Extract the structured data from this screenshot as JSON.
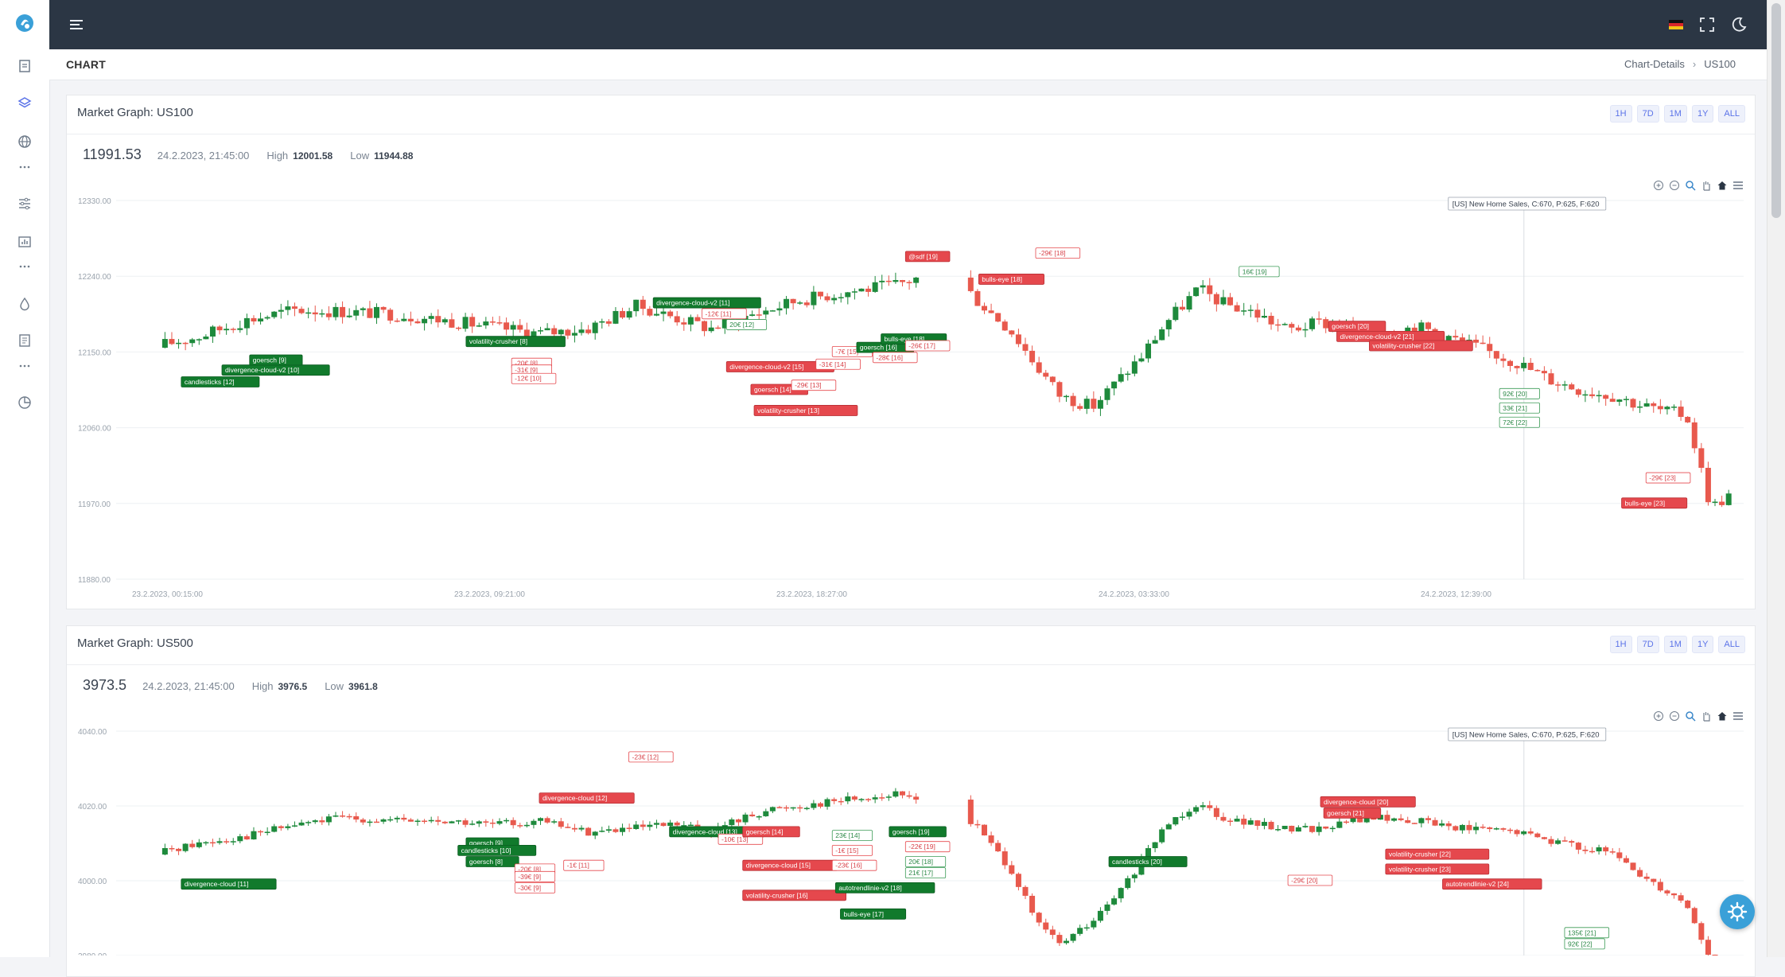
{
  "page": {
    "title": "CHART",
    "breadcrumb": [
      "Chart-Details",
      "US100"
    ]
  },
  "colors": {
    "up": "#1e8a3c",
    "down": "#e8594d",
    "accent": "#5b73e8",
    "topbar": "#2b3644"
  },
  "ranges": [
    "1H",
    "7D",
    "1M",
    "1Y",
    "ALL"
  ],
  "charts": [
    {
      "title": "Market Graph: US100",
      "price": "11991.53",
      "date": "24.2.2023, 21:45:00",
      "high_label": "High",
      "high": "12001.58",
      "low_label": "Low",
      "low": "11944.88",
      "event": "[US] New Home Sales, C:670, P:625, F:620"
    },
    {
      "title": "Market Graph: US500",
      "price": "3973.5",
      "date": "24.2.2023, 21:45:00",
      "high_label": "High",
      "high": "3976.5",
      "low_label": "Low",
      "low": "3961.8",
      "event": "[US] New Home Sales, C:670, P:625, F:620"
    }
  ],
  "chart_data": [
    {
      "type": "line",
      "chart_style": "candlestick",
      "ylim": [
        11880,
        12330
      ],
      "yticks": [
        "12330.00",
        "12240.00",
        "12150.00",
        "12060.00",
        "11970.00",
        "11880.00"
      ],
      "xticks": [
        "23.2.2023, 00:15:00",
        "23.2.2023, 09:21:00",
        "23.2.2023, 18:27:00",
        "24.2.2023, 03:33:00",
        "24.2.2023, 12:39:00"
      ],
      "x": [
        0.02,
        0.05,
        0.08,
        0.11,
        0.14,
        0.17,
        0.2,
        0.23,
        0.26,
        0.29,
        0.32,
        0.345,
        0.365,
        0.38,
        0.4,
        0.42,
        0.45,
        0.48,
        0.51,
        0.53,
        0.55,
        0.565,
        0.58,
        0.6,
        0.615,
        0.63,
        0.645,
        0.665,
        0.68,
        0.7,
        0.72,
        0.74,
        0.77,
        0.8,
        0.83,
        0.86,
        0.88,
        0.9,
        0.92,
        0.935,
        0.95,
        0.965,
        0.98,
        0.995
      ],
      "y": [
        12155,
        12168,
        12188,
        12200,
        12198,
        12195,
        12188,
        12180,
        12172,
        12178,
        12205,
        12190,
        12178,
        12188,
        12200,
        12212,
        12222,
        12230,
        12250,
        12210,
        12175,
        12135,
        12098,
        12085,
        12115,
        12145,
        12185,
        12225,
        12208,
        12196,
        12176,
        12185,
        12172,
        12180,
        12160,
        12138,
        12118,
        12105,
        12098,
        12088,
        12080,
        12075,
        11965,
        11985
      ],
      "labels": [
        {
          "text": "candlesticks [12]",
          "x": 0.04,
          "y": 12114,
          "kind": "up"
        },
        {
          "text": "divergence-cloud-v2 [10]",
          "x": 0.065,
          "y": 12128,
          "kind": "up"
        },
        {
          "text": "goersch [9]",
          "x": 0.082,
          "y": 12140,
          "kind": "up"
        },
        {
          "text": "volatility-crusher [8]",
          "x": 0.215,
          "y": 12162,
          "kind": "up"
        },
        {
          "text": "-20€ [8]",
          "x": 0.243,
          "y": 12136,
          "kind": "down-outline"
        },
        {
          "text": "-31€ [9]",
          "x": 0.243,
          "y": 12128,
          "kind": "down-outline"
        },
        {
          "text": "-12€ [10]",
          "x": 0.243,
          "y": 12118,
          "kind": "down-outline"
        },
        {
          "text": "divergence-cloud-v2 [11]",
          "x": 0.33,
          "y": 12208,
          "kind": "up"
        },
        {
          "text": "-12€ [11]",
          "x": 0.36,
          "y": 12195,
          "kind": "down-outline"
        },
        {
          "text": "20€ [12]",
          "x": 0.375,
          "y": 12182,
          "kind": "up-outline"
        },
        {
          "text": "divergence-cloud-v2 [15]",
          "x": 0.375,
          "y": 12132,
          "kind": "down"
        },
        {
          "text": "goersch [14]",
          "x": 0.39,
          "y": 12105,
          "kind": "down"
        },
        {
          "text": "-29€ [13]",
          "x": 0.415,
          "y": 12110,
          "kind": "down-outline"
        },
        {
          "text": "volatility-crusher [13]",
          "x": 0.392,
          "y": 12080,
          "kind": "down"
        },
        {
          "text": "-31€ [14]",
          "x": 0.43,
          "y": 12135,
          "kind": "down-outline"
        },
        {
          "text": "-7€ [15]",
          "x": 0.44,
          "y": 12150,
          "kind": "down-outline"
        },
        {
          "text": "goersch [16]",
          "x": 0.455,
          "y": 12155,
          "kind": "up"
        },
        {
          "text": "bulls-eye [18]",
          "x": 0.47,
          "y": 12165,
          "kind": "up"
        },
        {
          "text": "-28€ [16]",
          "x": 0.465,
          "y": 12143,
          "kind": "down-outline"
        },
        {
          "text": "-26€ [17]",
          "x": 0.485,
          "y": 12157,
          "kind": "down-outline"
        },
        {
          "text": "@sdf [19]",
          "x": 0.485,
          "y": 12263,
          "kind": "down"
        },
        {
          "text": "bulls-eye [18]",
          "x": 0.53,
          "y": 12236,
          "kind": "down"
        },
        {
          "text": "-29€ [18]",
          "x": 0.565,
          "y": 12267,
          "kind": "down-outline"
        },
        {
          "text": "16€ [19]",
          "x": 0.69,
          "y": 12245,
          "kind": "up-outline"
        },
        {
          "text": "goersch [20]",
          "x": 0.745,
          "y": 12180,
          "kind": "down"
        },
        {
          "text": "divergence-cloud-v2 [21]",
          "x": 0.75,
          "y": 12168,
          "kind": "down"
        },
        {
          "text": "volatility-crusher [22]",
          "x": 0.77,
          "y": 12157,
          "kind": "down"
        },
        {
          "text": "92€ [20]",
          "x": 0.85,
          "y": 12100,
          "kind": "up-outline"
        },
        {
          "text": "33€ [21]",
          "x": 0.85,
          "y": 12083,
          "kind": "up-outline"
        },
        {
          "text": "72€ [22]",
          "x": 0.85,
          "y": 12066,
          "kind": "up-outline"
        },
        {
          "text": "-29€ [23]",
          "x": 0.94,
          "y": 12000,
          "kind": "down-outline"
        },
        {
          "text": "bulls-eye [23]",
          "x": 0.925,
          "y": 11970,
          "kind": "down"
        }
      ]
    },
    {
      "type": "line",
      "chart_style": "candlestick",
      "ylim": [
        3980,
        4040
      ],
      "yticks": [
        "4040.00",
        "4020.00",
        "4000.00",
        "3980.00"
      ],
      "x": [
        0.02,
        0.05,
        0.08,
        0.11,
        0.14,
        0.17,
        0.2,
        0.23,
        0.26,
        0.29,
        0.32,
        0.345,
        0.365,
        0.38,
        0.4,
        0.42,
        0.45,
        0.48,
        0.51,
        0.53,
        0.55,
        0.565,
        0.58,
        0.6,
        0.615,
        0.63,
        0.645,
        0.665,
        0.68,
        0.7,
        0.72,
        0.74,
        0.77,
        0.8,
        0.83,
        0.86,
        0.88,
        0.9,
        0.92,
        0.935,
        0.95,
        0.965,
        0.98,
        0.995
      ],
      "y": [
        4007,
        4010,
        4012,
        4015,
        4017,
        4016,
        4016,
        4015,
        4016,
        4013,
        4014,
        4015,
        4013,
        4016,
        4019,
        4020,
        4022,
        4023,
        4021,
        4014,
        4003,
        3989,
        3983,
        3989,
        3996,
        4005,
        4015,
        4021,
        4017,
        4015,
        4014,
        4014,
        4017,
        4016,
        4014,
        4013,
        4011,
        4009,
        4007,
        4002,
        3998,
        3994,
        3978,
        3975
      ],
      "labels": [
        {
          "text": "divergence-cloud [11]",
          "x": 0.04,
          "y": 3999,
          "kind": "up"
        },
        {
          "text": "goersch [9]",
          "x": 0.215,
          "y": 4010,
          "kind": "up"
        },
        {
          "text": "candlesticks [10]",
          "x": 0.21,
          "y": 4008,
          "kind": "up"
        },
        {
          "text": "goersch [8]",
          "x": 0.215,
          "y": 4005,
          "kind": "up"
        },
        {
          "text": "-20€ [8]",
          "x": 0.245,
          "y": 4003,
          "kind": "down-outline"
        },
        {
          "text": "-39€ [9]",
          "x": 0.245,
          "y": 4001,
          "kind": "down-outline"
        },
        {
          "text": "-30€ [9]",
          "x": 0.245,
          "y": 3998,
          "kind": "down-outline"
        },
        {
          "text": "-23€ [12]",
          "x": 0.315,
          "y": 4033,
          "kind": "down-outline"
        },
        {
          "text": "divergence-cloud [12]",
          "x": 0.26,
          "y": 4022,
          "kind": "down"
        },
        {
          "text": "-1€ [11]",
          "x": 0.275,
          "y": 4004,
          "kind": "down-outline"
        },
        {
          "text": "divergence-cloud [13]",
          "x": 0.34,
          "y": 4013,
          "kind": "up"
        },
        {
          "text": "-10€ [13]",
          "x": 0.37,
          "y": 4011,
          "kind": "down-outline"
        },
        {
          "text": "goersch [14]",
          "x": 0.385,
          "y": 4013,
          "kind": "down"
        },
        {
          "text": "divergence-cloud [15]",
          "x": 0.385,
          "y": 4004,
          "kind": "down"
        },
        {
          "text": "volatility-crusher [16]",
          "x": 0.385,
          "y": 3996,
          "kind": "down"
        },
        {
          "text": "23€ [14]",
          "x": 0.44,
          "y": 4012,
          "kind": "up-outline"
        },
        {
          "text": "-1€ [15]",
          "x": 0.44,
          "y": 4008,
          "kind": "down-outline"
        },
        {
          "text": "-23€ [16]",
          "x": 0.44,
          "y": 4004,
          "kind": "down-outline"
        },
        {
          "text": "autotrendlinie-v2 [18]",
          "x": 0.442,
          "y": 3998,
          "kind": "up"
        },
        {
          "text": "bulls-eye [17]",
          "x": 0.445,
          "y": 3991,
          "kind": "up"
        },
        {
          "text": "goersch [19]",
          "x": 0.475,
          "y": 4013,
          "kind": "up"
        },
        {
          "text": "-22€ [19]",
          "x": 0.485,
          "y": 4009,
          "kind": "down-outline"
        },
        {
          "text": "20€ [18]",
          "x": 0.485,
          "y": 4005,
          "kind": "up-outline"
        },
        {
          "text": "21€ [17]",
          "x": 0.485,
          "y": 4002,
          "kind": "up-outline"
        },
        {
          "text": "candlesticks [20]",
          "x": 0.61,
          "y": 4005,
          "kind": "up"
        },
        {
          "text": "divergence-cloud [20]",
          "x": 0.74,
          "y": 4021,
          "kind": "down"
        },
        {
          "text": "goersch [21]",
          "x": 0.742,
          "y": 4018,
          "kind": "down"
        },
        {
          "text": "-29€ [20]",
          "x": 0.72,
          "y": 4000,
          "kind": "down-outline"
        },
        {
          "text": "volatility-crusher [22]",
          "x": 0.78,
          "y": 4007,
          "kind": "down"
        },
        {
          "text": "volatility-crusher [23]",
          "x": 0.78,
          "y": 4003,
          "kind": "down"
        },
        {
          "text": "autotrendlinie-v2 [24]",
          "x": 0.815,
          "y": 3999,
          "kind": "down"
        },
        {
          "text": "135€ [21]",
          "x": 0.89,
          "y": 3986,
          "kind": "up-outline"
        },
        {
          "text": "92€ [22]",
          "x": 0.89,
          "y": 3983,
          "kind": "up-outline"
        }
      ]
    }
  ]
}
